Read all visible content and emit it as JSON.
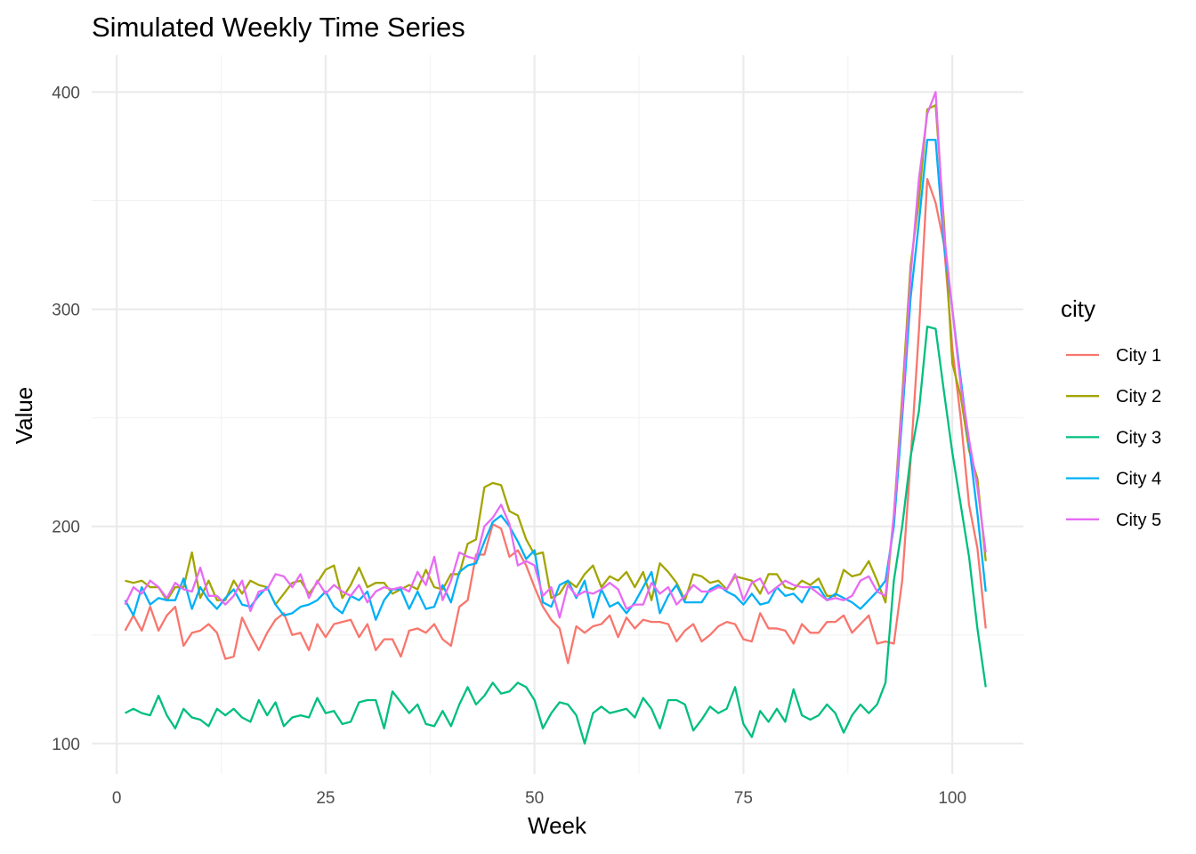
{
  "chart_data": {
    "type": "line",
    "title": "Simulated Weekly Time Series",
    "xlabel": "Week",
    "ylabel": "Value",
    "legend_title": "city",
    "legend_position": "right",
    "grid": true,
    "xlim": [
      -3,
      108.5
    ],
    "ylim": [
      86,
      417
    ],
    "x_ticks": [
      0,
      25,
      50,
      75,
      100
    ],
    "x_tick_labels": [
      "0",
      "25",
      "50",
      "75",
      "100"
    ],
    "y_ticks": [
      100,
      200,
      300,
      400
    ],
    "y_tick_labels": [
      "100",
      "200",
      "300",
      "400"
    ],
    "x": [
      1,
      2,
      3,
      4,
      5,
      6,
      7,
      8,
      9,
      10,
      11,
      12,
      13,
      14,
      15,
      16,
      17,
      18,
      19,
      20,
      21,
      22,
      23,
      24,
      25,
      26,
      27,
      28,
      29,
      30,
      31,
      32,
      33,
      34,
      35,
      36,
      37,
      38,
      39,
      40,
      41,
      42,
      43,
      44,
      45,
      46,
      47,
      48,
      49,
      50,
      51,
      52,
      53,
      54,
      55,
      56,
      57,
      58,
      59,
      60,
      61,
      62,
      63,
      64,
      65,
      66,
      67,
      68,
      69,
      70,
      71,
      72,
      73,
      74,
      75,
      76,
      77,
      78,
      79,
      80,
      81,
      82,
      83,
      84,
      85,
      86,
      87,
      88,
      89,
      90,
      91,
      92,
      93,
      94,
      95,
      96,
      97,
      98,
      99,
      100,
      101,
      102,
      103,
      104
    ],
    "series": [
      {
        "name": "City 1",
        "color": "#F8766D",
        "values": [
          152,
          159,
          152,
          163,
          152,
          159,
          163,
          145,
          151,
          152,
          155,
          151,
          139,
          140,
          158,
          150,
          143,
          151,
          157,
          160,
          150,
          151,
          143,
          155,
          149,
          155,
          156,
          157,
          149,
          155,
          143,
          148,
          148,
          140,
          152,
          153,
          151,
          155,
          148,
          145,
          163,
          166,
          187,
          187,
          201,
          199,
          186,
          189,
          182,
          172,
          163,
          157,
          153,
          137,
          154,
          151,
          154,
          155,
          159,
          149,
          158,
          153,
          157,
          156,
          156,
          155,
          147,
          152,
          155,
          147,
          150,
          154,
          156,
          155,
          148,
          147,
          160,
          153,
          153,
          152,
          146,
          155,
          151,
          151,
          156,
          156,
          159,
          151,
          155,
          159,
          146,
          147,
          146,
          175,
          230,
          290,
          360,
          349,
          330,
          282,
          250,
          210,
          190,
          153
        ]
      },
      {
        "name": "City 2",
        "color": "#A3A500",
        "values": [
          175,
          174,
          175,
          172,
          172,
          166,
          172,
          172,
          188,
          167,
          175,
          166,
          166,
          175,
          169,
          175,
          173,
          172,
          164,
          169,
          174,
          175,
          169,
          174,
          180,
          182,
          167,
          173,
          181,
          172,
          174,
          174,
          169,
          171,
          173,
          171,
          180,
          172,
          171,
          178,
          178,
          192,
          194,
          218,
          220,
          219,
          207,
          205,
          194,
          187,
          188,
          167,
          169,
          175,
          172,
          178,
          182,
          172,
          177,
          175,
          179,
          172,
          179,
          166,
          183,
          179,
          174,
          166,
          178,
          177,
          174,
          175,
          171,
          177,
          176,
          175,
          169,
          178,
          178,
          172,
          171,
          175,
          173,
          176,
          168,
          168,
          180,
          177,
          178,
          184,
          175,
          165,
          205,
          260,
          320,
          350,
          392,
          394,
          340,
          275,
          260,
          235,
          222,
          184
        ]
      },
      {
        "name": "City 3",
        "color": "#00BF7D",
        "values": [
          114,
          116,
          114,
          113,
          122,
          113,
          107,
          116,
          112,
          111,
          108,
          116,
          113,
          116,
          112,
          110,
          120,
          113,
          119,
          108,
          112,
          113,
          112,
          121,
          114,
          115,
          109,
          110,
          119,
          120,
          120,
          107,
          124,
          119,
          114,
          118,
          109,
          108,
          115,
          108,
          118,
          126,
          118,
          122,
          128,
          123,
          124,
          128,
          126,
          120,
          107,
          114,
          119,
          118,
          113,
          100,
          114,
          117,
          114,
          115,
          116,
          112,
          121,
          116,
          107,
          120,
          120,
          118,
          106,
          111,
          117,
          114,
          116,
          126,
          109,
          103,
          115,
          110,
          116,
          110,
          125,
          113,
          111,
          113,
          118,
          114,
          105,
          113,
          118,
          114,
          118,
          128,
          175,
          200,
          232,
          253,
          292,
          291,
          262,
          234,
          210,
          186,
          153,
          126
        ]
      },
      {
        "name": "City 4",
        "color": "#00B0F6",
        "values": [
          166,
          159,
          172,
          164,
          167,
          166,
          166,
          176,
          162,
          172,
          166,
          162,
          167,
          171,
          164,
          163,
          168,
          172,
          164,
          159,
          160,
          163,
          164,
          166,
          170,
          163,
          160,
          168,
          166,
          170,
          157,
          166,
          171,
          171,
          162,
          170,
          162,
          163,
          173,
          165,
          179,
          182,
          183,
          193,
          202,
          205,
          200,
          193,
          185,
          189,
          165,
          163,
          173,
          175,
          167,
          175,
          158,
          171,
          163,
          165,
          160,
          165,
          172,
          179,
          160,
          168,
          173,
          165,
          165,
          165,
          171,
          173,
          170,
          168,
          164,
          169,
          164,
          165,
          172,
          168,
          169,
          165,
          172,
          172,
          166,
          169,
          167,
          165,
          162,
          166,
          170,
          175,
          200,
          250,
          305,
          340,
          378,
          378,
          330,
          300,
          268,
          238,
          206,
          170
        ]
      },
      {
        "name": "City 5",
        "color": "#E76BF3",
        "values": [
          164,
          172,
          169,
          175,
          172,
          167,
          174,
          171,
          170,
          181,
          168,
          168,
          164,
          168,
          175,
          161,
          170,
          171,
          178,
          177,
          172,
          178,
          167,
          175,
          169,
          173,
          170,
          168,
          173,
          165,
          170,
          172,
          171,
          172,
          170,
          179,
          173,
          186,
          166,
          175,
          188,
          186,
          185,
          200,
          204,
          210,
          201,
          182,
          184,
          182,
          168,
          172,
          158,
          173,
          168,
          170,
          169,
          171,
          174,
          171,
          162,
          164,
          164,
          174,
          169,
          172,
          164,
          168,
          173,
          170,
          170,
          172,
          171,
          178,
          166,
          174,
          176,
          169,
          172,
          175,
          173,
          172,
          172,
          169,
          166,
          167,
          166,
          168,
          175,
          177,
          170,
          168,
          205,
          255,
          315,
          360,
          390,
          400,
          335,
          300,
          265,
          240,
          218,
          188
        ]
      }
    ]
  }
}
